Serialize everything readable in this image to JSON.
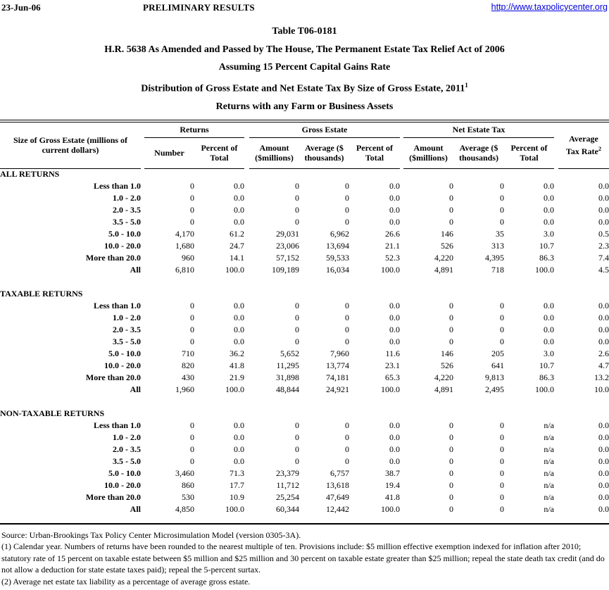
{
  "page_header": {
    "date": "23-Jun-06",
    "status": "PRELIMINARY RESULTS",
    "link": "http://www.taxpolicycenter.org"
  },
  "titles": [
    "Table T06-0181",
    "H.R. 5638 As Amended and Passed by The House, The Permanent Estate Tax Relief Act of 2006",
    "Assuming 15 Percent Capital Gains Rate",
    "Distribution of Gross Estate and Net Estate Tax By Size of Gross Estate, 2011",
    "Returns with any Farm or Business Assets"
  ],
  "title_superscript": "1",
  "table": {
    "col1_header": "Size of Gross Estate (millions of\ncurrent dollars)",
    "groups": [
      {
        "label": "Returns",
        "cols": [
          "Number",
          "Percent of\nTotal"
        ]
      },
      {
        "label": "Gross Estate",
        "cols": [
          "Amount\n($millions)",
          "Average ($\nthousands)",
          "Percent of\nTotal"
        ]
      },
      {
        "label": "Net Estate Tax",
        "cols": [
          "Amount\n($millions)",
          "Average ($\nthousands)",
          "Percent of\nTotal"
        ]
      }
    ],
    "last_header": "Average\nTax Rate",
    "last_header_superscript": "2",
    "sections": [
      {
        "label": "ALL RETURNS",
        "rows": [
          {
            "label": "Less than 1.0",
            "values": [
              "0",
              "0.0",
              "0",
              "0",
              "0.0",
              "0",
              "0",
              "0.0",
              "0.0"
            ]
          },
          {
            "label": "1.0 - 2.0",
            "values": [
              "0",
              "0.0",
              "0",
              "0",
              "0.0",
              "0",
              "0",
              "0.0",
              "0.0"
            ]
          },
          {
            "label": "2.0 - 3.5",
            "values": [
              "0",
              "0.0",
              "0",
              "0",
              "0.0",
              "0",
              "0",
              "0.0",
              "0.0"
            ]
          },
          {
            "label": "3.5 - 5.0",
            "values": [
              "0",
              "0.0",
              "0",
              "0",
              "0.0",
              "0",
              "0",
              "0.0",
              "0.0"
            ]
          },
          {
            "label": "5.0 - 10.0",
            "values": [
              "4,170",
              "61.2",
              "29,031",
              "6,962",
              "26.6",
              "146",
              "35",
              "3.0",
              "0.5"
            ]
          },
          {
            "label": "10.0 - 20.0",
            "values": [
              "1,680",
              "24.7",
              "23,006",
              "13,694",
              "21.1",
              "526",
              "313",
              "10.7",
              "2.3"
            ]
          },
          {
            "label": "More than 20.0",
            "values": [
              "960",
              "14.1",
              "57,152",
              "59,533",
              "52.3",
              "4,220",
              "4,395",
              "86.3",
              "7.4"
            ]
          },
          {
            "label": "All",
            "values": [
              "6,810",
              "100.0",
              "109,189",
              "16,034",
              "100.0",
              "4,891",
              "718",
              "100.0",
              "4.5"
            ]
          }
        ]
      },
      {
        "label": "TAXABLE RETURNS",
        "rows": [
          {
            "label": "Less than 1.0",
            "values": [
              "0",
              "0.0",
              "0",
              "0",
              "0.0",
              "0",
              "0",
              "0.0",
              "0.0"
            ]
          },
          {
            "label": "1.0 - 2.0",
            "values": [
              "0",
              "0.0",
              "0",
              "0",
              "0.0",
              "0",
              "0",
              "0.0",
              "0.0"
            ]
          },
          {
            "label": "2.0 - 3.5",
            "values": [
              "0",
              "0.0",
              "0",
              "0",
              "0.0",
              "0",
              "0",
              "0.0",
              "0.0"
            ]
          },
          {
            "label": "3.5 - 5.0",
            "values": [
              "0",
              "0.0",
              "0",
              "0",
              "0.0",
              "0",
              "0",
              "0.0",
              "0.0"
            ]
          },
          {
            "label": "5.0 - 10.0",
            "values": [
              "710",
              "36.2",
              "5,652",
              "7,960",
              "11.6",
              "146",
              "205",
              "3.0",
              "2.6"
            ]
          },
          {
            "label": "10.0 - 20.0",
            "values": [
              "820",
              "41.8",
              "11,295",
              "13,774",
              "23.1",
              "526",
              "641",
              "10.7",
              "4.7"
            ]
          },
          {
            "label": "More than 20.0",
            "values": [
              "430",
              "21.9",
              "31,898",
              "74,181",
              "65.3",
              "4,220",
              "9,813",
              "86.3",
              "13.2"
            ]
          },
          {
            "label": "All",
            "values": [
              "1,960",
              "100.0",
              "48,844",
              "24,921",
              "100.0",
              "4,891",
              "2,495",
              "100.0",
              "10.0"
            ]
          }
        ]
      },
      {
        "label": "NON-TAXABLE RETURNS",
        "rows": [
          {
            "label": "Less than 1.0",
            "values": [
              "0",
              "0.0",
              "0",
              "0",
              "0.0",
              "0",
              "0",
              "n/a",
              "0.0"
            ]
          },
          {
            "label": "1.0 - 2.0",
            "values": [
              "0",
              "0.0",
              "0",
              "0",
              "0.0",
              "0",
              "0",
              "n/a",
              "0.0"
            ]
          },
          {
            "label": "2.0 - 3.5",
            "values": [
              "0",
              "0.0",
              "0",
              "0",
              "0.0",
              "0",
              "0",
              "n/a",
              "0.0"
            ]
          },
          {
            "label": "3.5 - 5.0",
            "values": [
              "0",
              "0.0",
              "0",
              "0",
              "0.0",
              "0",
              "0",
              "n/a",
              "0.0"
            ]
          },
          {
            "label": "5.0 - 10.0",
            "values": [
              "3,460",
              "71.3",
              "23,379",
              "6,757",
              "38.7",
              "0",
              "0",
              "n/a",
              "0.0"
            ]
          },
          {
            "label": "10.0 - 20.0",
            "values": [
              "860",
              "17.7",
              "11,712",
              "13,618",
              "19.4",
              "0",
              "0",
              "n/a",
              "0.0"
            ]
          },
          {
            "label": "More than 20.0",
            "values": [
              "530",
              "10.9",
              "25,254",
              "47,649",
              "41.8",
              "0",
              "0",
              "n/a",
              "0.0"
            ]
          },
          {
            "label": "All",
            "values": [
              "4,850",
              "100.0",
              "60,344",
              "12,442",
              "100.0",
              "0",
              "0",
              "n/a",
              "0.0"
            ]
          }
        ]
      }
    ]
  },
  "footnotes": {
    "source": "Source: Urban-Brookings Tax Policy Center Microsimulation Model (version 0305-3A).",
    "note1": "(1) Calendar year. Numbers of returns have been rounded to the nearest multiple of ten. Provisions include: $5 million effective exemption indexed for inflation after 2010;  statutory rate of 15 percent on taxable estate between $5 million and $25 million and 30 percent on taxable estate greater than $25 million; repeal the state death tax credit (and do not allow a deduction for state estate taxes paid); repeal the 5-percent surtax.",
    "note2": "(2) Average net estate tax liability as a percentage of average gross estate."
  }
}
